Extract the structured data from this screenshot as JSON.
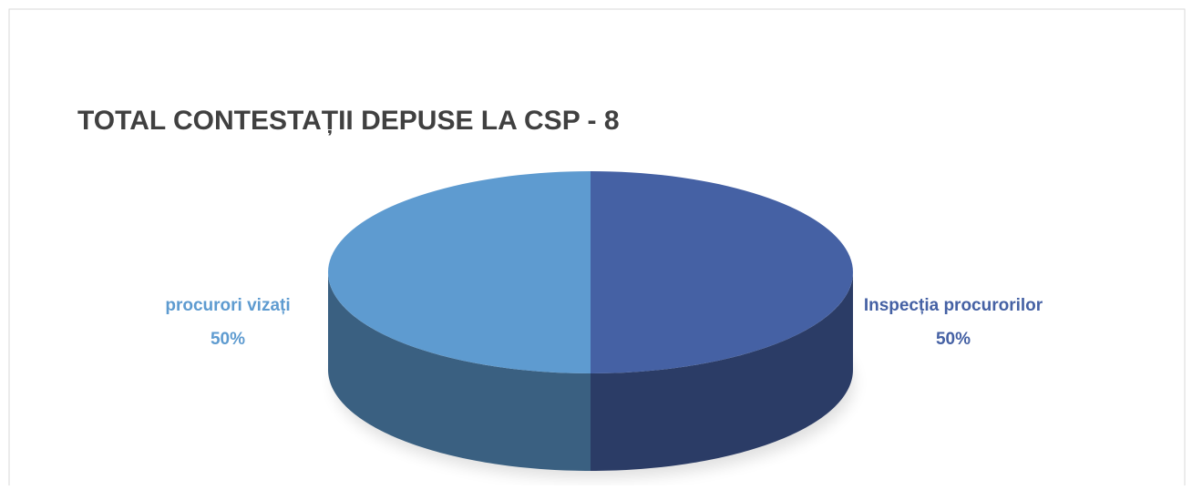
{
  "chart_data": {
    "type": "pie",
    "title": "TOTAL CONTESTAȚII DEPUSE LA CSP - 8",
    "categories": [
      "Inspecția procurorilor",
      "procurori vizați"
    ],
    "values": [
      50,
      50
    ],
    "value_labels": [
      "50%",
      "50%"
    ],
    "colors": [
      "#4561a4",
      "#5e9bd0"
    ]
  }
}
